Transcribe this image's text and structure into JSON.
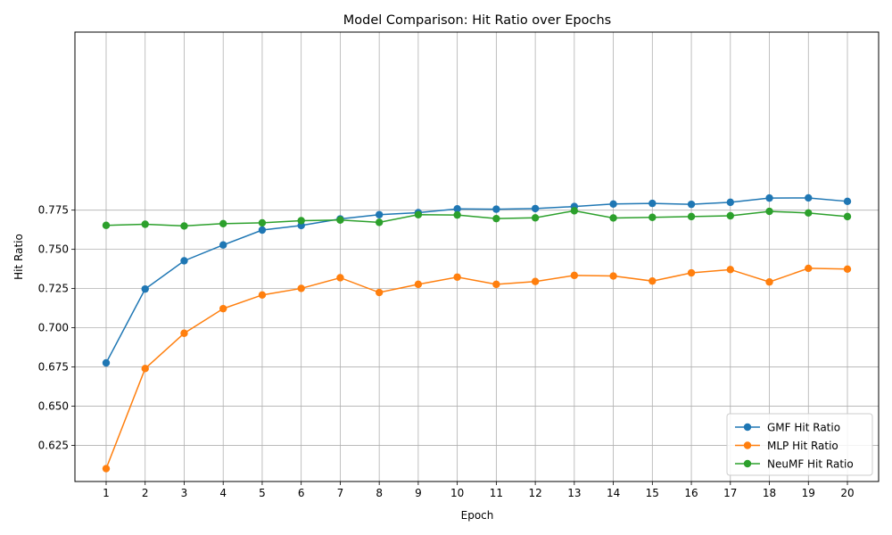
{
  "chart_data": {
    "type": "line",
    "title": "Model Comparison: Hit Ratio over Epochs",
    "xlabel": "Epoch",
    "ylabel": "Hit Ratio",
    "x": [
      1,
      2,
      3,
      4,
      5,
      6,
      7,
      8,
      9,
      10,
      11,
      12,
      13,
      14,
      15,
      16,
      17,
      18,
      19,
      20
    ],
    "xlim": [
      0.2,
      20.8
    ],
    "ylim": [
      0.602,
      0.8885
    ],
    "yticks": [
      0.625,
      0.65,
      0.675,
      0.7,
      0.725,
      0.75,
      0.775
    ],
    "ytick_labels": [
      "0.625",
      "0.650",
      "0.675",
      "0.700",
      "0.725",
      "0.750",
      "0.775"
    ],
    "grid": true,
    "legend_position": "bottom-right",
    "series": [
      {
        "name": "GMF Hit Ratio",
        "color": "#1f77b4",
        "values": [
          0.6776,
          0.7247,
          0.7427,
          0.7528,
          0.7623,
          0.7652,
          0.7694,
          0.7721,
          0.7734,
          0.7758,
          0.7756,
          0.776,
          0.7773,
          0.7789,
          0.7793,
          0.7787,
          0.78,
          0.7827,
          0.7828,
          0.7806
        ]
      },
      {
        "name": "MLP Hit Ratio",
        "color": "#ff7f0e",
        "values": [
          0.6102,
          0.674,
          0.6965,
          0.7122,
          0.7209,
          0.7251,
          0.7319,
          0.7225,
          0.7277,
          0.7323,
          0.7277,
          0.7295,
          0.7334,
          0.733,
          0.7298,
          0.735,
          0.7371,
          0.7292,
          0.7379,
          0.7374
        ]
      },
      {
        "name": "NeuMF Hit Ratio",
        "color": "#2ca02c",
        "values": [
          0.7653,
          0.766,
          0.7649,
          0.7664,
          0.7669,
          0.7683,
          0.7687,
          0.7672,
          0.7721,
          0.7719,
          0.7696,
          0.7701,
          0.7746,
          0.77,
          0.7704,
          0.7709,
          0.7714,
          0.7742,
          0.7732,
          0.7709
        ]
      }
    ]
  }
}
